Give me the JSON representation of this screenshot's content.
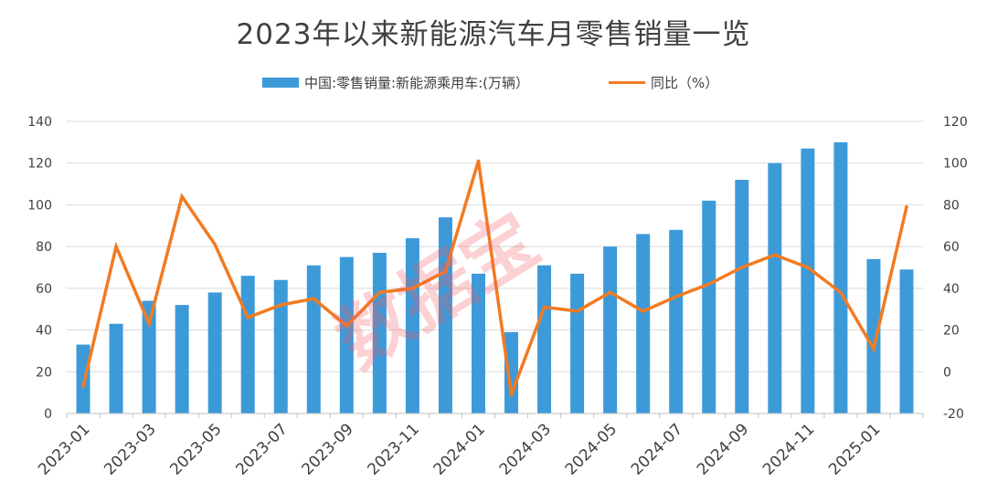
{
  "title": "2023年以来新能源汽车月零售销量一览",
  "watermark_text": "数据宝",
  "legend": {
    "bar_label": "中国:零售销量:新能源乘用车:(万辆）",
    "line_label": "同比（%）"
  },
  "colors": {
    "bar": "#3d9ad9",
    "line": "#f27b21",
    "grid": "#d9d9d9",
    "text": "#404040"
  },
  "chart_data": {
    "type": "bar+line",
    "title": "2023年以来新能源汽车月零售销量一览",
    "categories": [
      "2023-01",
      "2023-02",
      "2023-03",
      "2023-04",
      "2023-05",
      "2023-06",
      "2023-07",
      "2023-08",
      "2023-09",
      "2023-10",
      "2023-11",
      "2023-12",
      "2024-01",
      "2024-02",
      "2024-03",
      "2024-04",
      "2024-05",
      "2024-06",
      "2024-07",
      "2024-08",
      "2024-09",
      "2024-10",
      "2024-11",
      "2024-12",
      "2025-01",
      "2025-02"
    ],
    "x_tick_labels": [
      "2023-01",
      "2023-03",
      "2023-05",
      "2023-07",
      "2023-09",
      "2023-11",
      "2024-01",
      "2024-03",
      "2024-05",
      "2024-07",
      "2024-09",
      "2024-11",
      "2025-01"
    ],
    "series": [
      {
        "name": "中国:零售销量:新能源乘用车:(万辆）",
        "type": "bar",
        "axis": "left",
        "values": [
          33,
          43,
          54,
          52,
          58,
          66,
          64,
          71,
          75,
          77,
          84,
          94,
          67,
          39,
          71,
          67,
          80,
          86,
          88,
          102,
          112,
          120,
          127,
          130,
          74,
          69
        ]
      },
      {
        "name": "同比（%）",
        "type": "line",
        "axis": "right",
        "values": [
          -7,
          60,
          23,
          84,
          61,
          26,
          32,
          35,
          22,
          38,
          40,
          48,
          101,
          -11,
          31,
          29,
          38,
          29,
          36,
          42,
          50,
          56,
          50,
          38,
          11,
          79
        ]
      }
    ],
    "y_left": {
      "min": 0,
      "max": 140,
      "step": 20,
      "ticks": [
        0,
        20,
        40,
        60,
        80,
        100,
        120,
        140
      ]
    },
    "y_right": {
      "min": -20,
      "max": 120,
      "step": 20,
      "ticks": [
        -20,
        0,
        20,
        40,
        60,
        80,
        100,
        120
      ]
    },
    "grid": true,
    "legend_position": "top-center"
  }
}
